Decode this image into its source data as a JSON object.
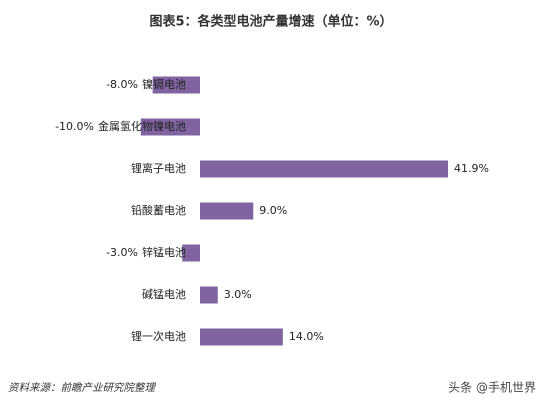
{
  "chart_data": {
    "type": "bar",
    "orientation": "horizontal",
    "title": "图表5：各类型电池产量增速（单位：%）",
    "categories": [
      "镍镉电池",
      "金属氢化物镍电池",
      "锂离子电池",
      "铅酸蓄电池",
      "锌锰电池",
      "碱锰电池",
      "锂一次电池"
    ],
    "values": [
      -8.0,
      -10.0,
      41.9,
      9.0,
      -3.0,
      3.0,
      14.0
    ],
    "value_labels": [
      "-8.0%",
      "-10.0%",
      "41.9%",
      "9.0%",
      "-3.0%",
      "3.0%",
      "14.0%"
    ],
    "color": "#8064a2",
    "source": "资料来源：前瞻产业研究院整理",
    "watermark": "头条 @手机世界"
  }
}
